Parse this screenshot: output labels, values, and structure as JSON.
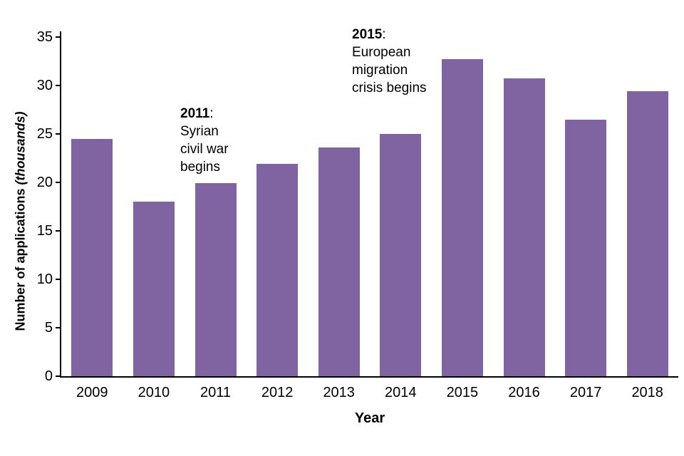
{
  "chart_data": {
    "type": "bar",
    "categories": [
      "2009",
      "2010",
      "2011",
      "2012",
      "2013",
      "2014",
      "2015",
      "2016",
      "2017",
      "2018"
    ],
    "values": [
      24.5,
      18.0,
      19.9,
      21.9,
      23.6,
      25.0,
      32.7,
      30.7,
      26.5,
      29.4
    ],
    "title": "",
    "xlabel": "Year",
    "ylabel": "Number of applications (thousands)",
    "ylabel_text": "Number of applications ",
    "ylabel_suffix": "(thousands)",
    "ylim": [
      0,
      35
    ],
    "yticks": [
      0,
      5,
      10,
      15,
      20,
      25,
      30,
      35
    ],
    "bar_color": "#8064A2",
    "axis_color": "#000000",
    "grid": false,
    "legend": "none",
    "annotations": [
      {
        "year": "2011",
        "colon": ":",
        "lines": [
          "Syrian",
          "civil war",
          "begins"
        ]
      },
      {
        "year": "2015",
        "colon": ":",
        "lines": [
          "European",
          "migration",
          "crisis begins"
        ]
      }
    ]
  }
}
